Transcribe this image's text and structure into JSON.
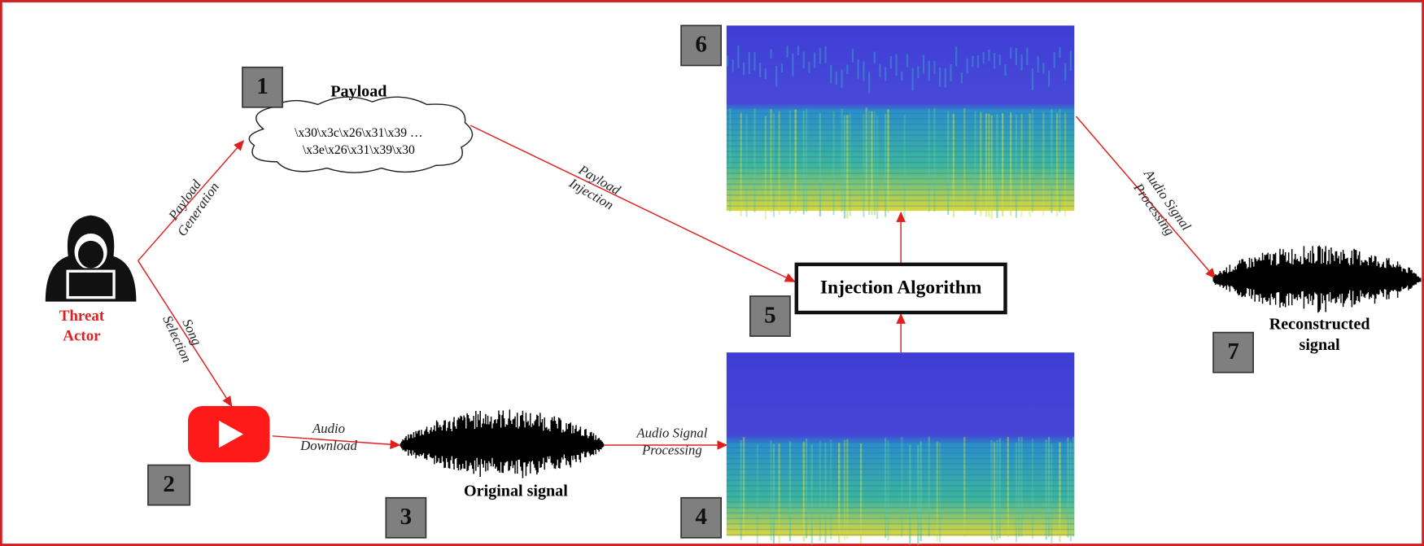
{
  "actor": {
    "label_lines": [
      "Threat",
      "Actor"
    ]
  },
  "payload": {
    "title": "Payload",
    "lines": [
      "\\x30\\x3c\\x26\\x31\\x39 …",
      "\\x3e\\x26\\x31\\x39\\x30"
    ]
  },
  "steps": [
    "1",
    "2",
    "3",
    "4",
    "5",
    "6",
    "7"
  ],
  "edges": [
    {
      "label_lines": [
        "Payload",
        "Generation"
      ]
    },
    {
      "label_lines": [
        "Song",
        "Selection"
      ]
    },
    {
      "label_lines": [
        "Audio",
        "Download"
      ]
    },
    {
      "label_lines": [
        "Audio Signal",
        "Processing"
      ]
    },
    {
      "label_lines": [
        "Payload",
        "Injection"
      ]
    },
    {
      "label_lines": [
        "Audio Signal",
        "Processing"
      ]
    }
  ],
  "injection_algorithm": "Injection Algorithm",
  "original_signal": "Original signal",
  "reconstructed_signal": {
    "label_lines": [
      "Reconstructed",
      "signal"
    ]
  }
}
